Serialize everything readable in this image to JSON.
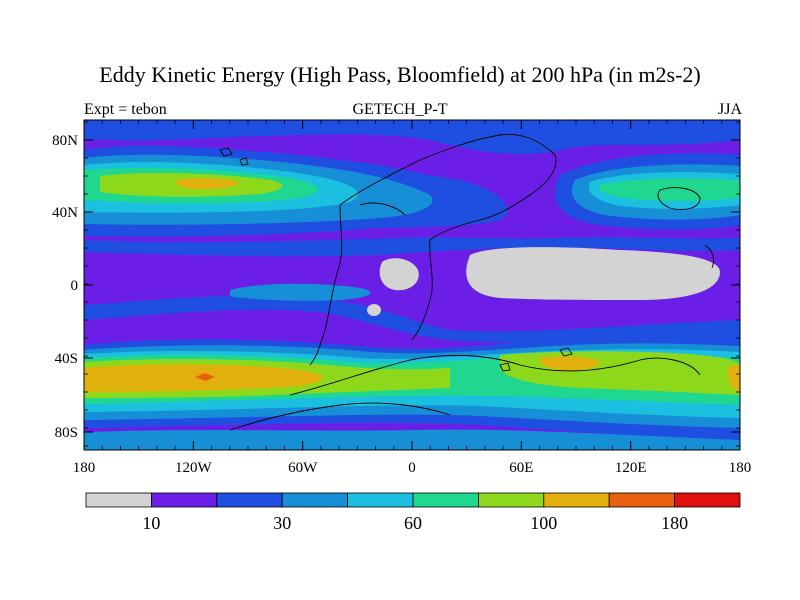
{
  "header": {
    "title": "Eddy Kinetic Energy (High Pass, Bloomfield) at 200 hPa (in m2s-2)",
    "left": "Expt = tebon",
    "center": "GETECH_P-T",
    "right": "JJA"
  },
  "axes": {
    "y_ticks": [
      "80N",
      "40N",
      "0",
      "40S",
      "80S"
    ],
    "x_ticks": [
      "180",
      "120W",
      "60W",
      "0",
      "60E",
      "120E",
      "180"
    ]
  },
  "colorbar": {
    "colors": [
      "#d3d3d3",
      "#6a1ee6",
      "#1f4fe0",
      "#178fd6",
      "#1bc0e0",
      "#1fd78f",
      "#8ed81c",
      "#e2b00c",
      "#e86010",
      "#e01010"
    ],
    "labels": [
      "10",
      "30",
      "60",
      "100",
      "180"
    ]
  },
  "fill_colors": {
    "lowest": "#d3d3d3",
    "level1": "#6a1ee6",
    "level2": "#1f4fe0",
    "level3": "#178fd6",
    "level4": "#1bc0e0",
    "level5": "#1fd78f",
    "level6": "#8ed81c",
    "level7": "#e2b00c",
    "level8": "#e86010",
    "level9": "#e01010"
  }
}
